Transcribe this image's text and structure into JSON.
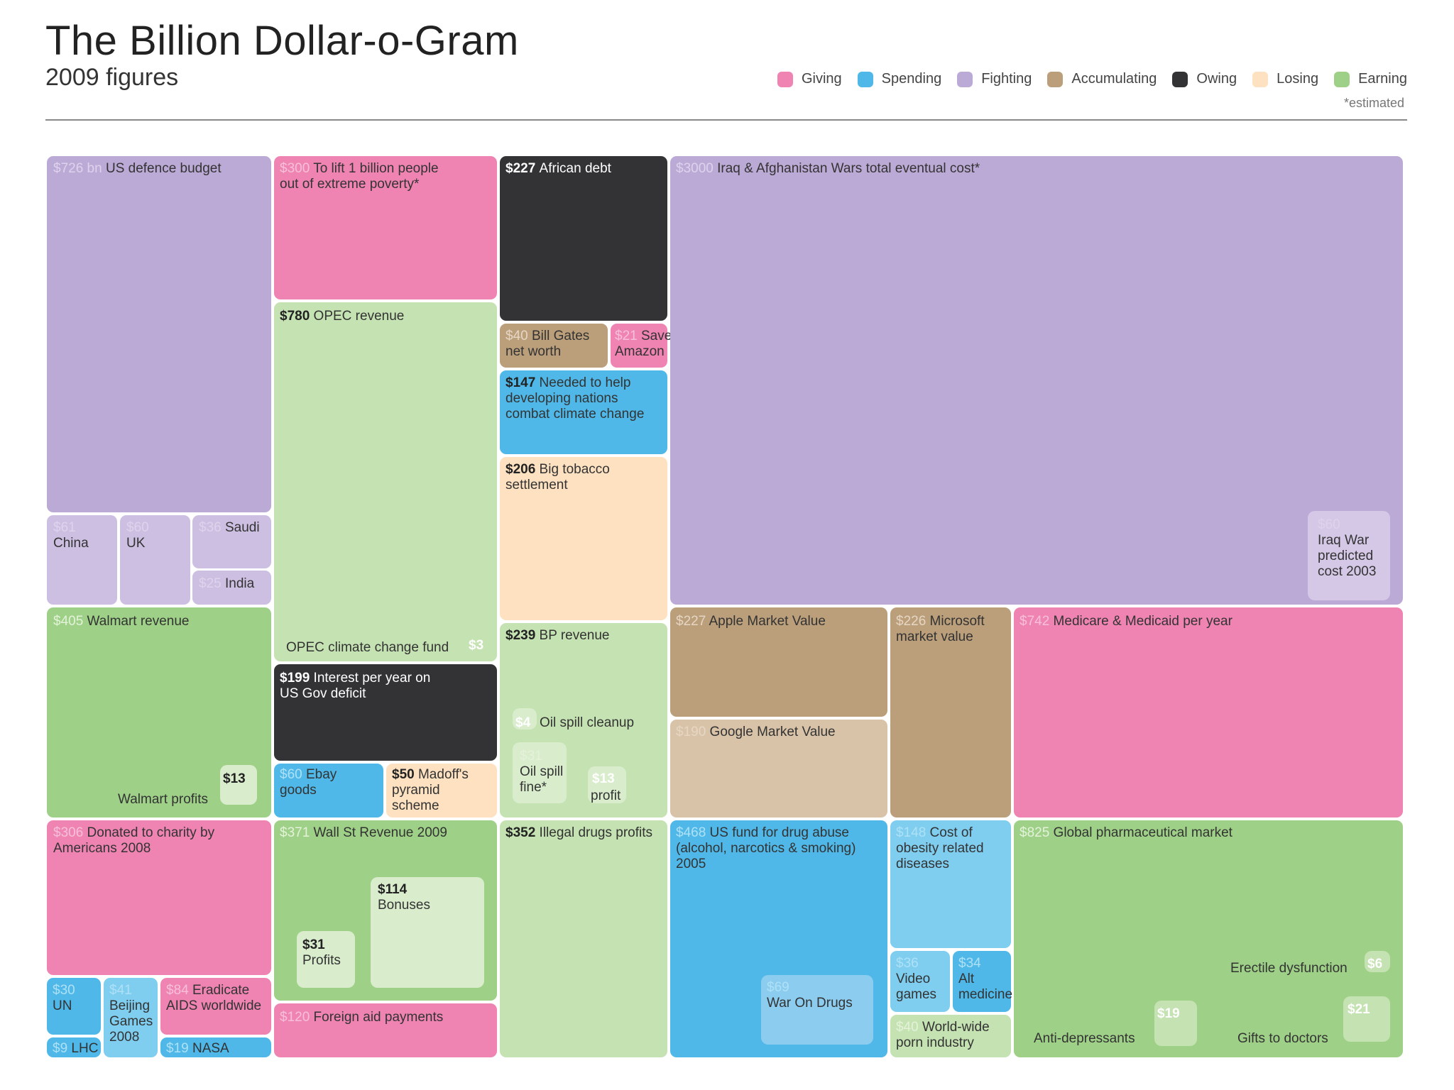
{
  "title": "The Billion Dollar-o-Gram",
  "subtitle": "2009 figures",
  "legend": [
    {
      "label": "Giving",
      "color": "#ef84b3"
    },
    {
      "label": "Spending",
      "color": "#4fb8e8"
    },
    {
      "label": "Fighting",
      "color": "#bcaad6"
    },
    {
      "label": "Accumulating",
      "color": "#bb9e7a"
    },
    {
      "label": "Owing",
      "color": "#333336"
    },
    {
      "label": "Losing",
      "color": "#fde1c0"
    },
    {
      "label": "Earning",
      "color": "#9ed187"
    }
  ],
  "estimated_note": "*estimated",
  "chart_data": {
    "type": "treemap",
    "title": "The Billion Dollar-o-Gram",
    "subtitle": "2009 figures",
    "units": "billions of US dollars",
    "items": [
      {
        "value": "$726 bn",
        "label": "US defence budget",
        "category": "Fighting"
      },
      {
        "value": "$61",
        "label": "China",
        "category": "Fighting"
      },
      {
        "value": "$60",
        "label": "UK",
        "category": "Fighting"
      },
      {
        "value": "$36",
        "label": "Saudi",
        "category": "Fighting"
      },
      {
        "value": "$25",
        "label": "India",
        "category": "Fighting"
      },
      {
        "value": "$300",
        "label": "To lift 1 billion people out of extreme poverty*",
        "category": "Giving"
      },
      {
        "value": "$780",
        "label": "OPEC revenue",
        "category": "Earning"
      },
      {
        "value": "$3",
        "label": "OPEC climate change fund",
        "category": "Earning"
      },
      {
        "value": "$227",
        "label": "African debt",
        "category": "Owing"
      },
      {
        "value": "$40",
        "label": "Bill Gates net worth",
        "category": "Accumulating"
      },
      {
        "value": "$21",
        "label": "Save Amazon",
        "category": "Giving"
      },
      {
        "value": "$147",
        "label": "Needed to help developing nations combat climate change",
        "category": "Spending"
      },
      {
        "value": "$206",
        "label": "Big tobacco settlement",
        "category": "Losing"
      },
      {
        "value": "$3000",
        "label": "Iraq & Afghanistan Wars total eventual cost*",
        "category": "Fighting"
      },
      {
        "value": "$60",
        "label": "Iraq War predicted cost 2003",
        "category": "Fighting"
      },
      {
        "value": "$405",
        "label": "Walmart revenue",
        "category": "Earning"
      },
      {
        "value": "$13",
        "label": "Walmart profits",
        "category": "Earning"
      },
      {
        "value": "$199",
        "label": "Interest per year on US Gov deficit",
        "category": "Owing"
      },
      {
        "value": "$60",
        "label": "Ebay goods",
        "category": "Spending"
      },
      {
        "value": "$50",
        "label": "Madoff's pyramid scheme",
        "category": "Losing"
      },
      {
        "value": "$239",
        "label": "BP revenue",
        "category": "Earning"
      },
      {
        "value": "$4",
        "label": "Oil spill cleanup",
        "category": "Earning"
      },
      {
        "value": "$31",
        "label": "Oil spill fine*",
        "category": "Earning"
      },
      {
        "value": "$13",
        "label": "profit",
        "category": "Earning"
      },
      {
        "value": "$227",
        "label": "Apple Market Value",
        "category": "Accumulating"
      },
      {
        "value": "$226",
        "label": "Microsoft market value",
        "category": "Accumulating"
      },
      {
        "value": "$190",
        "label": "Google Market Value",
        "category": "Accumulating"
      },
      {
        "value": "$742",
        "label": "Medicare & Medicaid per year",
        "category": "Giving"
      },
      {
        "value": "$306",
        "label": "Donated to charity by Americans 2008",
        "category": "Giving"
      },
      {
        "value": "$30",
        "label": "UN",
        "category": "Spending"
      },
      {
        "value": "$9",
        "label": "LHC",
        "category": "Spending"
      },
      {
        "value": "$41",
        "label": "Beijing Games 2008",
        "category": "Spending"
      },
      {
        "value": "$84",
        "label": "Eradicate AIDS worldwide",
        "category": "Giving"
      },
      {
        "value": "$19",
        "label": "NASA",
        "category": "Spending"
      },
      {
        "value": "$371",
        "label": "Wall St Revenue 2009",
        "category": "Earning"
      },
      {
        "value": "$114",
        "label": "Bonuses",
        "category": "Earning"
      },
      {
        "value": "$31",
        "label": "Profits",
        "category": "Earning"
      },
      {
        "value": "$120",
        "label": "Foreign aid payments",
        "category": "Giving"
      },
      {
        "value": "$352",
        "label": "Illegal drugs profits",
        "category": "Earning"
      },
      {
        "value": "$468",
        "label": "US fund for drug abuse (alcohol, narcotics & smoking) 2005",
        "category": "Spending"
      },
      {
        "value": "$69",
        "label": "War On Drugs",
        "category": "Spending"
      },
      {
        "value": "$148",
        "label": "Cost of obesity related diseases",
        "category": "Spending"
      },
      {
        "value": "$36",
        "label": "Video games",
        "category": "Spending"
      },
      {
        "value": "$34",
        "label": "Alt medicine",
        "category": "Spending"
      },
      {
        "value": "$40",
        "label": "World-wide porn industry",
        "category": "Earning"
      },
      {
        "value": "$825",
        "label": "Global pharmaceutical market",
        "category": "Earning"
      },
      {
        "value": "$6",
        "label": "Erectile dysfunction",
        "category": "Earning"
      },
      {
        "value": "$19",
        "label": "Anti-depressants",
        "category": "Earning"
      },
      {
        "value": "$21",
        "label": "Gifts to doctors",
        "category": "Earning"
      }
    ]
  }
}
